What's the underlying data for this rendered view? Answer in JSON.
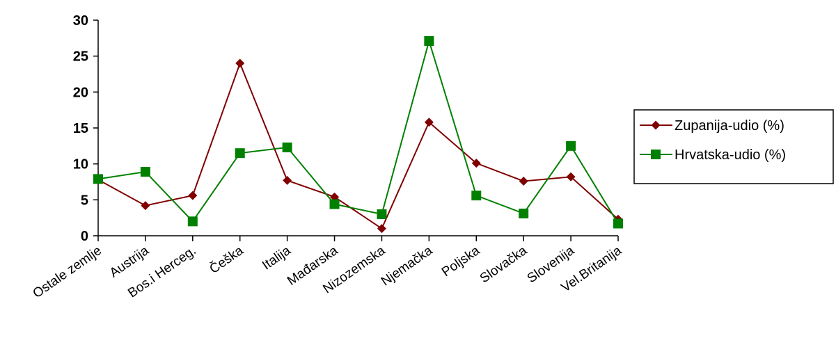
{
  "chart_data": {
    "type": "line",
    "title": "",
    "xlabel": "",
    "ylabel": "",
    "ylim": [
      0,
      30
    ],
    "yticks": [
      0,
      5,
      10,
      15,
      20,
      25,
      30
    ],
    "grid": false,
    "legend_position": "right",
    "categories": [
      "Ostale zemlje",
      "Austrija",
      "Bos.i Herceg.",
      "Češka",
      "Italija",
      "Mađarska",
      "Nizozemska",
      "Njemačka",
      "Poljska",
      "Slovačka",
      "Slovenija",
      "Vel.Britanija"
    ],
    "series": [
      {
        "name": "Zupanija-udio (%)",
        "color": "#800000",
        "marker": "diamond",
        "values": [
          7.8,
          4.2,
          5.6,
          24.0,
          7.7,
          5.4,
          1.0,
          15.8,
          10.1,
          7.6,
          8.2,
          2.3
        ]
      },
      {
        "name": "Hrvatska-udio (%)",
        "color": "#008000",
        "marker": "square",
        "values": [
          7.9,
          8.9,
          2.0,
          11.5,
          12.3,
          4.4,
          3.0,
          27.1,
          5.6,
          3.1,
          12.5,
          1.7
        ]
      }
    ]
  }
}
